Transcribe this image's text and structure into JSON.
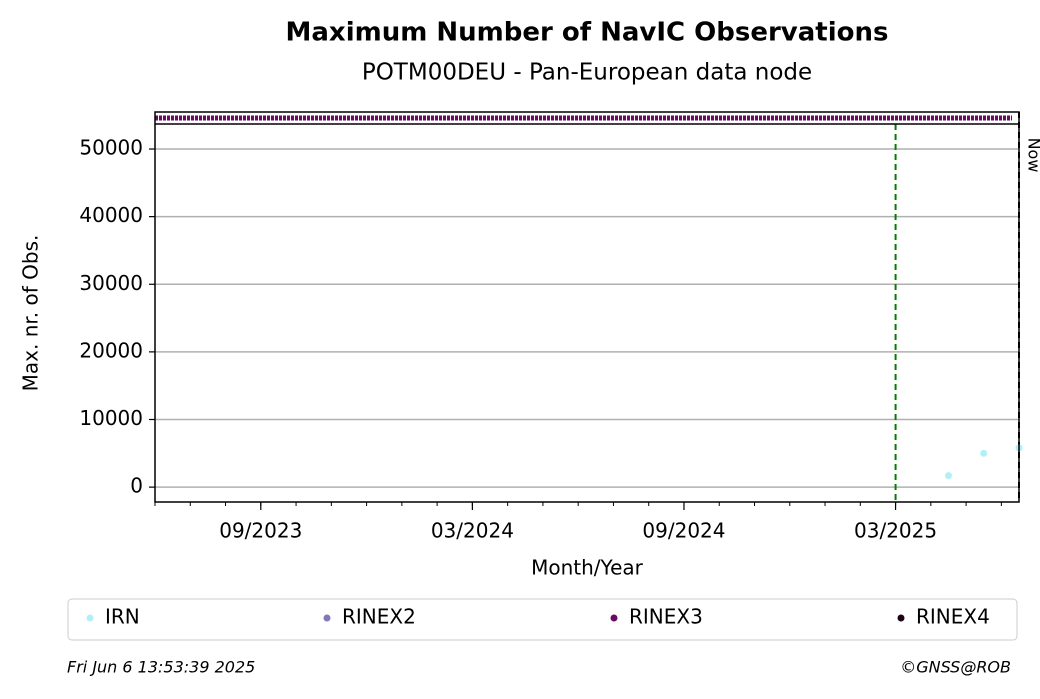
{
  "chart_data": {
    "type": "scatter",
    "title": "Maximum Number of NavIC Observations",
    "subtitle": "POTM00DEU - Pan-European data node",
    "x_label": "Month/Year",
    "y_label": "Max. nr. of Obs.",
    "timestamp": "Fri Jun  6 13:53:39 2025",
    "credit": "©GNSS@ROB",
    "xlim": [
      "2023-06",
      "2025-06"
    ],
    "xticks": [
      {
        "value": "2023-09",
        "label": "09/2023"
      },
      {
        "value": "2024-03",
        "label": "03/2024"
      },
      {
        "value": "2024-09",
        "label": "09/2024"
      },
      {
        "value": "2025-03",
        "label": "03/2025"
      }
    ],
    "ylim": [
      -2200,
      53700
    ],
    "yticks": [
      0,
      10000,
      20000,
      30000,
      40000,
      50000
    ],
    "grid": true,
    "reference_line": {
      "x": "2025-03",
      "color": "#008000"
    },
    "now_line": {
      "x": "2025-06",
      "label": "Now",
      "color": "#000000"
    },
    "series": [
      {
        "name": "IRN",
        "color": "#b2f0f5",
        "x": [
          "2025-04",
          "2025-05",
          "2025-06"
        ],
        "values": [
          1700,
          5000,
          5800
        ]
      },
      {
        "name": "RINEX2",
        "color": "#8078b8",
        "x": [],
        "values": []
      },
      {
        "name": "RINEX3",
        "color": "#6a0a62",
        "x": [],
        "values": []
      },
      {
        "name": "RINEX4",
        "color": "#1c0418",
        "x": [],
        "values": []
      }
    ],
    "format_strip_series": "RINEX3"
  }
}
